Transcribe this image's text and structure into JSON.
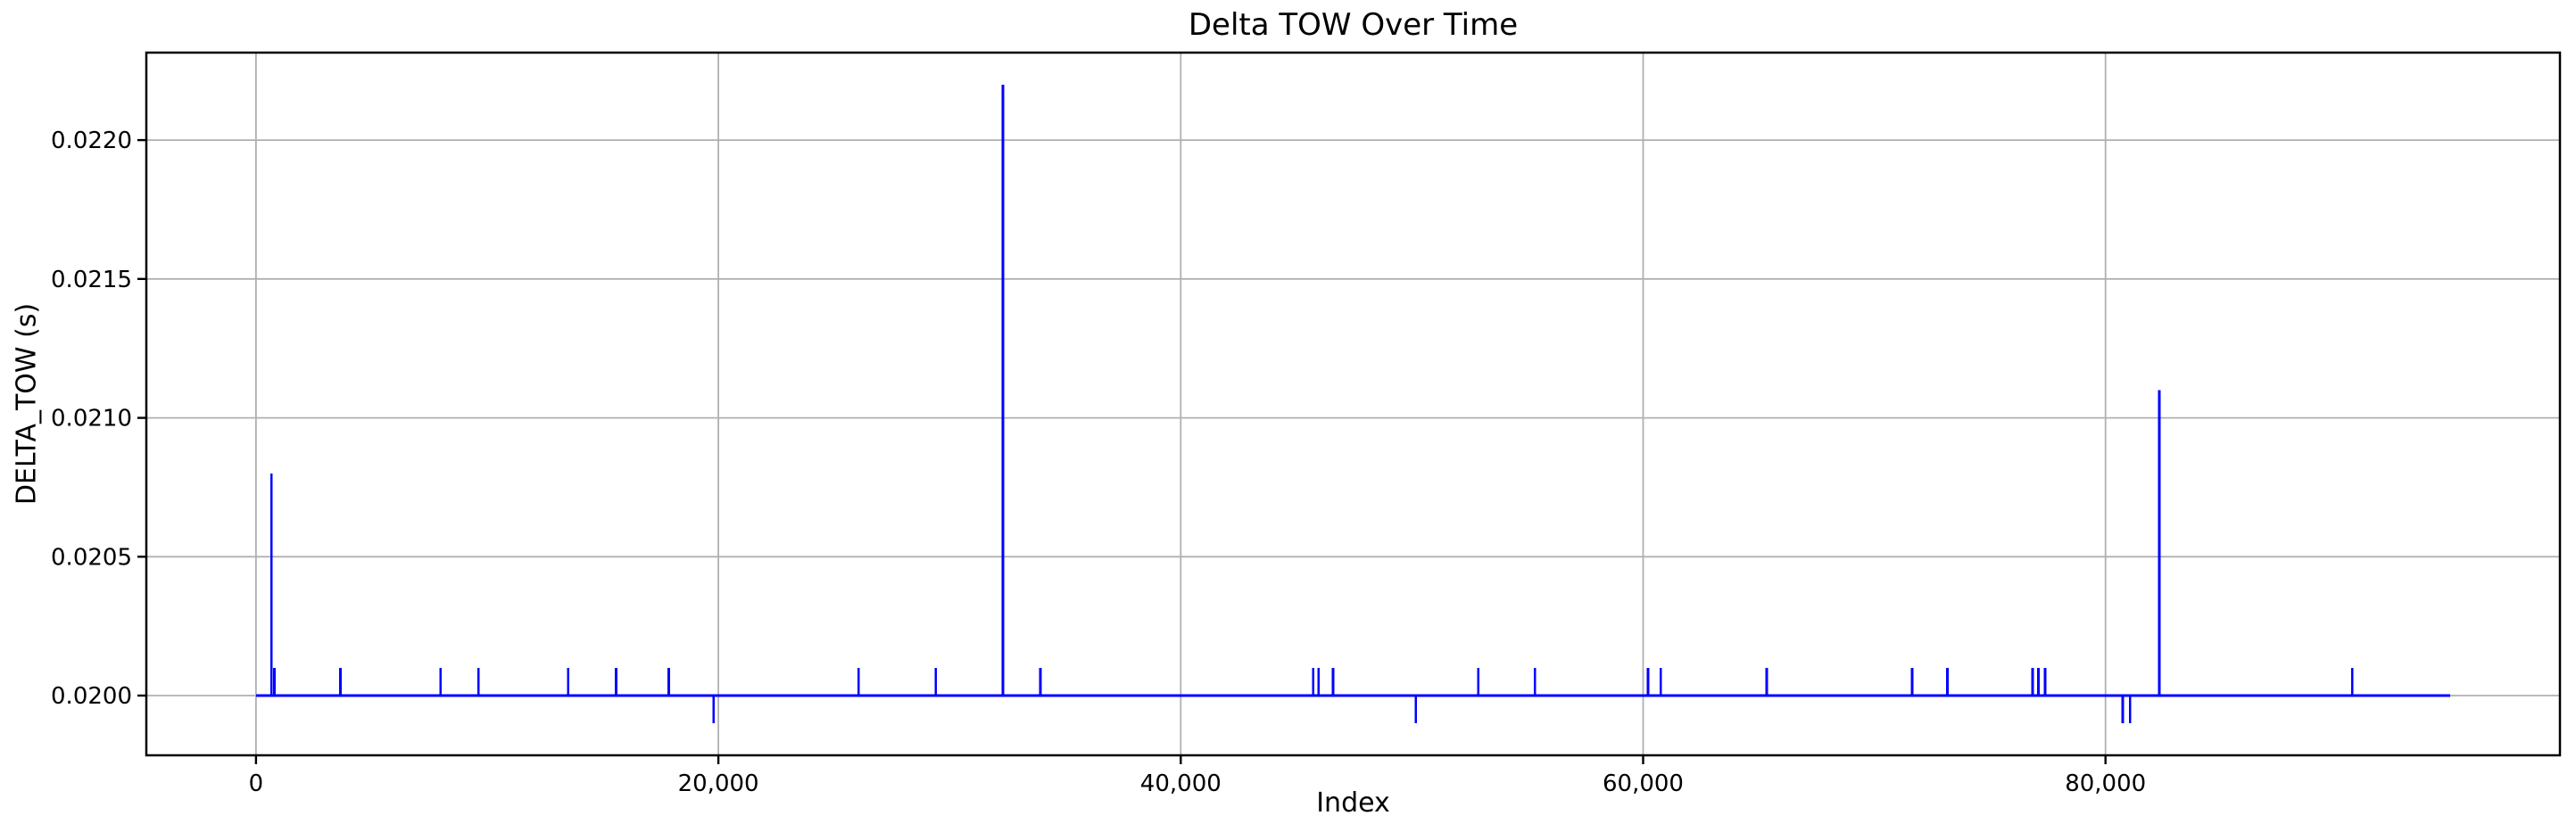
{
  "figure": {
    "title": "Delta TOW Over Time",
    "xlabel": "Index",
    "ylabel": "DELTA_TOW (s)"
  },
  "chart_data": {
    "type": "line",
    "title": "Delta TOW Over Time",
    "xlabel": "Index",
    "ylabel": "DELTA_TOW (s)",
    "legend": null,
    "grid": true,
    "colors": {
      "line": "#0000FF",
      "grid": "#B0B0B0",
      "spine": "#000000",
      "text": "#000000",
      "background": "#FFFFFF"
    },
    "xlim": [
      -4745,
      99655
    ],
    "ylim": [
      0.019785,
      0.022315
    ],
    "xticks": [
      {
        "value": 0,
        "label": "0"
      },
      {
        "value": 20000,
        "label": "20,000"
      },
      {
        "value": 40000,
        "label": "40,000"
      },
      {
        "value": 60000,
        "label": "60,000"
      },
      {
        "value": 80000,
        "label": "80,000"
      }
    ],
    "yticks": [
      {
        "value": 0.02,
        "label": "0.0200"
      },
      {
        "value": 0.0205,
        "label": "0.0205"
      },
      {
        "value": 0.021,
        "label": "0.0210"
      },
      {
        "value": 0.0215,
        "label": "0.0215"
      },
      {
        "value": 0.022,
        "label": "0.0220"
      }
    ],
    "n_points": 94910,
    "baseline_value": 0.02,
    "y_min_observed": 0.0199,
    "y_max_observed": 0.0222,
    "spikes": [
      {
        "index": 670,
        "value": 0.0208
      },
      {
        "index": 790,
        "value": 0.0201
      },
      {
        "index": 3650,
        "value": 0.0201
      },
      {
        "index": 7980,
        "value": 0.0201
      },
      {
        "index": 9620,
        "value": 0.0201
      },
      {
        "index": 13500,
        "value": 0.0201
      },
      {
        "index": 15570,
        "value": 0.0201
      },
      {
        "index": 17850,
        "value": 0.0201
      },
      {
        "index": 19790,
        "value": 0.0199
      },
      {
        "index": 26060,
        "value": 0.0201
      },
      {
        "index": 29400,
        "value": 0.0201
      },
      {
        "index": 32310,
        "value": 0.0222
      },
      {
        "index": 33930,
        "value": 0.0201
      },
      {
        "index": 45730,
        "value": 0.0201
      },
      {
        "index": 45960,
        "value": 0.0201
      },
      {
        "index": 46590,
        "value": 0.0201
      },
      {
        "index": 50170,
        "value": 0.0199
      },
      {
        "index": 52870,
        "value": 0.0201
      },
      {
        "index": 55320,
        "value": 0.0201
      },
      {
        "index": 60210,
        "value": 0.0201
      },
      {
        "index": 60760,
        "value": 0.0201
      },
      {
        "index": 65340,
        "value": 0.0201
      },
      {
        "index": 71640,
        "value": 0.0201
      },
      {
        "index": 73160,
        "value": 0.0201
      },
      {
        "index": 76840,
        "value": 0.0201
      },
      {
        "index": 77100,
        "value": 0.0201
      },
      {
        "index": 77390,
        "value": 0.0201
      },
      {
        "index": 80740,
        "value": 0.0199
      },
      {
        "index": 81060,
        "value": 0.0199
      },
      {
        "index": 82320,
        "value": 0.0211
      },
      {
        "index": 90670,
        "value": 0.0201
      }
    ]
  }
}
